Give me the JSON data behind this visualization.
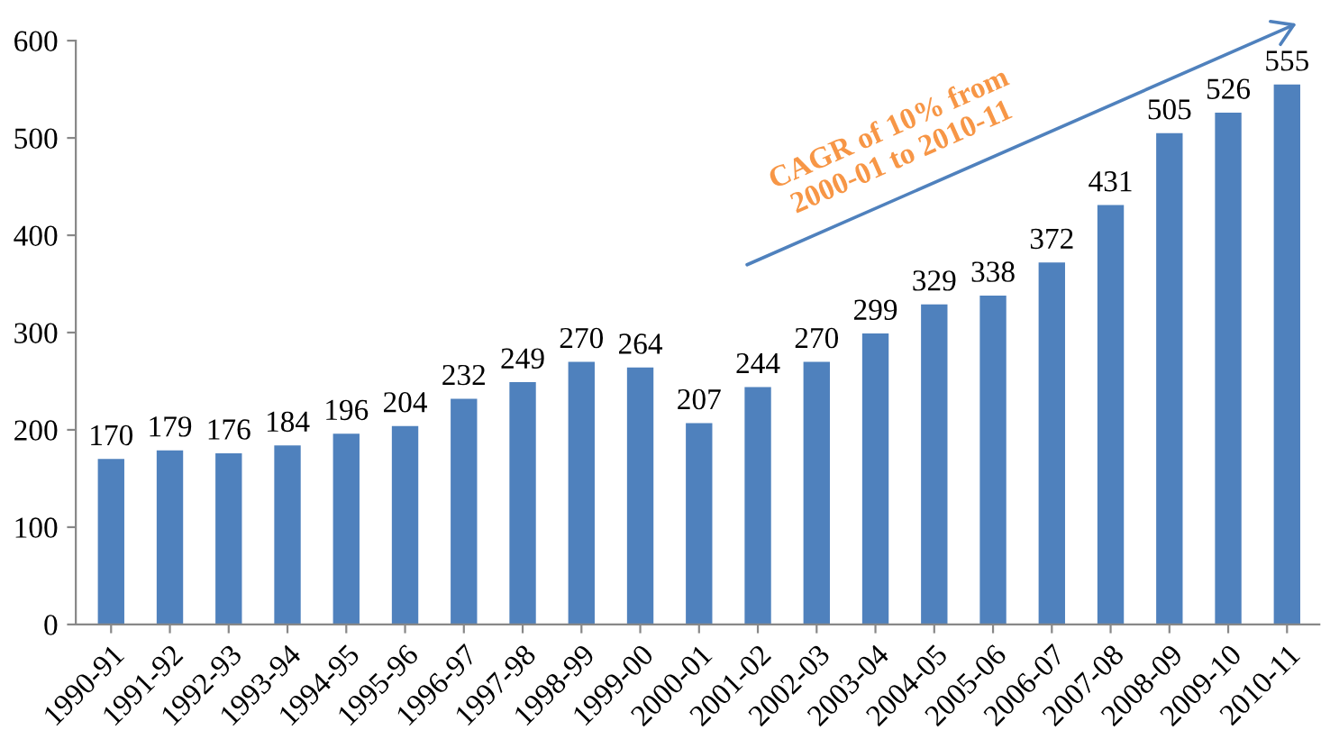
{
  "chart_data": {
    "type": "bar",
    "categories": [
      "1990-91",
      "1991-92",
      "1992-93",
      "1993-94",
      "1994-95",
      "1995-96",
      "1996-97",
      "1997-98",
      "1998-99",
      "1999-00",
      "2000-01",
      "2001-02",
      "2002-03",
      "2003-04",
      "2004-05",
      "2005-06",
      "2006-07",
      "2007-08",
      "2008-09",
      "2009-10",
      "2010-11"
    ],
    "values": [
      170,
      179,
      176,
      184,
      196,
      204,
      232,
      249,
      270,
      264,
      207,
      244,
      270,
      299,
      329,
      338,
      372,
      431,
      505,
      526,
      555
    ],
    "color": "#4f81bd",
    "ylim": [
      0,
      600
    ],
    "yticks": [
      0,
      100,
      200,
      300,
      400,
      500,
      600
    ],
    "data_labels": true,
    "grid": false,
    "legend": false,
    "annotations": [
      "CAGR of 10% from\n2000-01 to 2010-11"
    ]
  }
}
